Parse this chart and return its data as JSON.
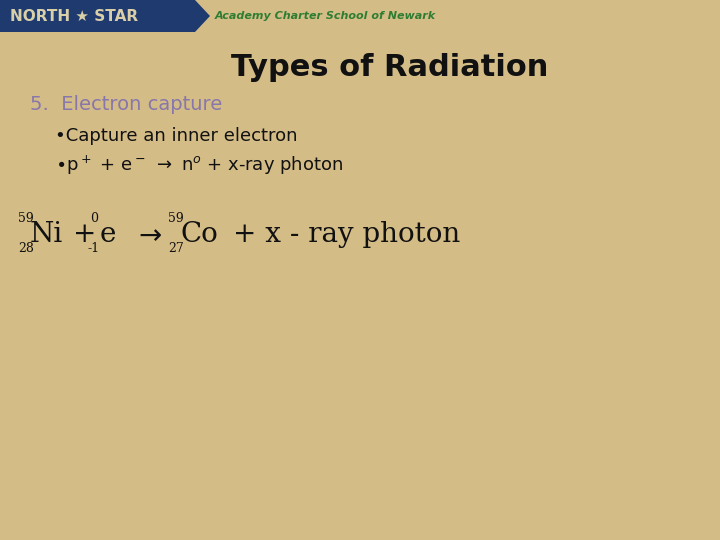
{
  "title": "Types of Radiation",
  "title_fontsize": 22,
  "title_color": "#111111",
  "background_color": "#d4bc87",
  "header_bg_color": "#1e3a6e",
  "header_text": "NORTH ★ STAR",
  "header_text_color": "#d9cfa8",
  "subheader_text": "Academy Charter School of Newark",
  "subheader_color": "#2e7d32",
  "section_title": "5.  Electron capture",
  "section_title_color": "#8877aa",
  "section_title_fontsize": 14,
  "bullet1": "•Capture an inner electron",
  "bullet1_fontsize": 13,
  "bullet1_color": "#111111",
  "bullet2_fontsize": 13,
  "bullet2_color": "#111111",
  "equation_color": "#111111",
  "eq_main_fontsize": 20,
  "eq_script_fontsize": 9
}
